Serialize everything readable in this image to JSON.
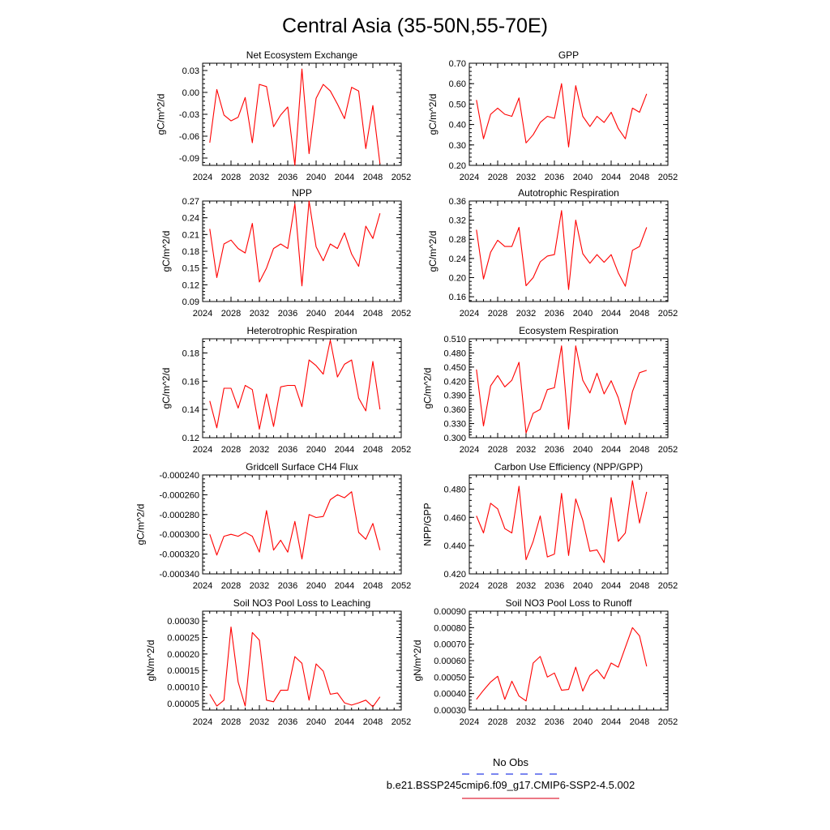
{
  "figure": {
    "title": "Central Asia (35-50N,55-70E)",
    "legend": {
      "entries": [
        {
          "label": "No Obs",
          "color": "#2b3ee6",
          "dash": true
        },
        {
          "label": "b.e21.BSSP245cmip6.f09_g17.CMIP6-SSP2-4.5.002",
          "color": "#e0283c",
          "dash": false
        }
      ]
    },
    "line_color": "#ff0000"
  },
  "chart_data": [
    {
      "type": "line",
      "title": "Net Ecosystem Exchange",
      "ylabel": "gC/m^2/d",
      "xlim": [
        2024,
        2052
      ],
      "xticks": [
        2024,
        2028,
        2032,
        2036,
        2040,
        2044,
        2048,
        2052
      ],
      "ylim": [
        -0.1,
        0.04
      ],
      "yticks": [
        0.03,
        0.0,
        -0.03,
        -0.06,
        -0.09
      ],
      "ytick_labels": [
        "0.03",
        "0.00",
        "-0.03",
        "-0.06",
        "-0.09"
      ],
      "x": [
        2025,
        2026,
        2027,
        2028,
        2029,
        2030,
        2031,
        2032,
        2033,
        2034,
        2035,
        2036,
        2037,
        2038,
        2039,
        2040,
        2041,
        2042,
        2043,
        2044,
        2045,
        2046,
        2047,
        2048,
        2049
      ],
      "y": [
        -0.069,
        0.004,
        -0.031,
        -0.039,
        -0.034,
        -0.007,
        -0.069,
        0.011,
        0.008,
        -0.047,
        -0.031,
        -0.02,
        -0.1,
        0.032,
        -0.084,
        -0.008,
        0.011,
        0.002,
        -0.016,
        -0.036,
        0.007,
        0.002,
        -0.077,
        -0.018,
        -0.098
      ]
    },
    {
      "type": "line",
      "title": "GPP",
      "ylabel": "gC/m^2/d",
      "xlim": [
        2024,
        2052
      ],
      "xticks": [
        2024,
        2028,
        2032,
        2036,
        2040,
        2044,
        2048,
        2052
      ],
      "ylim": [
        0.2,
        0.7
      ],
      "yticks": [
        0.7,
        0.6,
        0.5,
        0.4,
        0.3,
        0.2
      ],
      "ytick_labels": [
        "0.70",
        "0.60",
        "0.50",
        "0.40",
        "0.30",
        "0.20"
      ],
      "x": [
        2025,
        2026,
        2027,
        2028,
        2029,
        2030,
        2031,
        2032,
        2033,
        2034,
        2035,
        2036,
        2037,
        2038,
        2039,
        2040,
        2041,
        2042,
        2043,
        2044,
        2045,
        2046,
        2047,
        2048,
        2049
      ],
      "y": [
        0.52,
        0.33,
        0.45,
        0.48,
        0.45,
        0.44,
        0.53,
        0.31,
        0.35,
        0.41,
        0.44,
        0.43,
        0.6,
        0.29,
        0.59,
        0.44,
        0.39,
        0.44,
        0.41,
        0.46,
        0.38,
        0.33,
        0.48,
        0.46,
        0.55
      ]
    },
    {
      "type": "line",
      "title": "NPP",
      "ylabel": "gC/m^2/d",
      "xlim": [
        2024,
        2052
      ],
      "xticks": [
        2024,
        2028,
        2032,
        2036,
        2040,
        2044,
        2048,
        2052
      ],
      "ylim": [
        0.09,
        0.27
      ],
      "yticks": [
        0.27,
        0.24,
        0.21,
        0.18,
        0.15,
        0.12,
        0.09
      ],
      "ytick_labels": [
        "0.27",
        "0.24",
        "0.21",
        "0.18",
        "0.15",
        "0.12",
        "0.09"
      ],
      "x": [
        2025,
        2026,
        2027,
        2028,
        2029,
        2030,
        2031,
        2032,
        2033,
        2034,
        2035,
        2036,
        2037,
        2038,
        2039,
        2040,
        2041,
        2042,
        2043,
        2044,
        2045,
        2046,
        2047,
        2048,
        2049
      ],
      "y": [
        0.22,
        0.133,
        0.193,
        0.2,
        0.185,
        0.177,
        0.23,
        0.125,
        0.15,
        0.185,
        0.193,
        0.185,
        0.265,
        0.118,
        0.27,
        0.188,
        0.163,
        0.193,
        0.185,
        0.213,
        0.175,
        0.153,
        0.225,
        0.203,
        0.248
      ]
    },
    {
      "type": "line",
      "title": "Autotrophic Respiration",
      "ylabel": "gC/m^2/d",
      "xlim": [
        2024,
        2052
      ],
      "xticks": [
        2024,
        2028,
        2032,
        2036,
        2040,
        2044,
        2048,
        2052
      ],
      "ylim": [
        0.15,
        0.36
      ],
      "yticks": [
        0.36,
        0.32,
        0.28,
        0.24,
        0.2,
        0.16
      ],
      "ytick_labels": [
        "0.36",
        "0.32",
        "0.28",
        "0.24",
        "0.20",
        "0.16"
      ],
      "x": [
        2025,
        2026,
        2027,
        2028,
        2029,
        2030,
        2031,
        2032,
        2033,
        2034,
        2035,
        2036,
        2037,
        2038,
        2039,
        2040,
        2041,
        2042,
        2043,
        2044,
        2045,
        2046,
        2047,
        2048,
        2049
      ],
      "y": [
        0.3,
        0.197,
        0.253,
        0.278,
        0.265,
        0.265,
        0.305,
        0.183,
        0.2,
        0.233,
        0.245,
        0.248,
        0.34,
        0.175,
        0.32,
        0.25,
        0.23,
        0.248,
        0.232,
        0.248,
        0.21,
        0.182,
        0.257,
        0.265,
        0.305
      ]
    },
    {
      "type": "line",
      "title": "Heterotrophic Respiration",
      "ylabel": "gC/m^2/d",
      "xlim": [
        2024,
        2052
      ],
      "xticks": [
        2024,
        2028,
        2032,
        2036,
        2040,
        2044,
        2048,
        2052
      ],
      "ylim": [
        0.12,
        0.19
      ],
      "yticks": [
        0.18,
        0.16,
        0.14,
        0.12
      ],
      "ytick_labels": [
        "0.18",
        "0.16",
        "0.14",
        "0.12"
      ],
      "x": [
        2025,
        2026,
        2027,
        2028,
        2029,
        2030,
        2031,
        2032,
        2033,
        2034,
        2035,
        2036,
        2037,
        2038,
        2039,
        2040,
        2041,
        2042,
        2043,
        2044,
        2045,
        2046,
        2047,
        2048,
        2049
      ],
      "y": [
        0.146,
        0.127,
        0.155,
        0.155,
        0.141,
        0.157,
        0.154,
        0.126,
        0.151,
        0.128,
        0.156,
        0.157,
        0.157,
        0.142,
        0.175,
        0.171,
        0.165,
        0.189,
        0.163,
        0.172,
        0.175,
        0.148,
        0.139,
        0.174,
        0.14
      ]
    },
    {
      "type": "line",
      "title": "Ecosystem Respiration",
      "ylabel": "gC/m^2/d",
      "xlim": [
        2024,
        2052
      ],
      "xticks": [
        2024,
        2028,
        2032,
        2036,
        2040,
        2044,
        2048,
        2052
      ],
      "ylim": [
        0.3,
        0.51
      ],
      "yticks": [
        0.51,
        0.48,
        0.45,
        0.42,
        0.39,
        0.36,
        0.33,
        0.3
      ],
      "ytick_labels": [
        "0.510",
        "0.480",
        "0.450",
        "0.420",
        "0.390",
        "0.360",
        "0.330",
        "0.300"
      ],
      "x": [
        2025,
        2026,
        2027,
        2028,
        2029,
        2030,
        2031,
        2032,
        2033,
        2034,
        2035,
        2036,
        2037,
        2038,
        2039,
        2040,
        2041,
        2042,
        2043,
        2044,
        2045,
        2046,
        2047,
        2048,
        2049
      ],
      "y": [
        0.445,
        0.325,
        0.41,
        0.432,
        0.408,
        0.422,
        0.46,
        0.31,
        0.352,
        0.36,
        0.402,
        0.406,
        0.495,
        0.318,
        0.495,
        0.422,
        0.395,
        0.437,
        0.393,
        0.421,
        0.385,
        0.328,
        0.398,
        0.438,
        0.443
      ]
    },
    {
      "type": "line",
      "title": "Gridcell Surface CH4 Flux",
      "ylabel": "gC/m^2/d",
      "xlim": [
        2024,
        2052
      ],
      "xticks": [
        2024,
        2028,
        2032,
        2036,
        2040,
        2044,
        2048,
        2052
      ],
      "ylim": [
        -0.00034,
        -0.00024
      ],
      "yticks": [
        -0.00024,
        -0.00026,
        -0.00028,
        -0.0003,
        -0.00032,
        -0.00034
      ],
      "ytick_labels": [
        "-0.000240",
        "-0.000260",
        "-0.000280",
        "-0.000300",
        "-0.000320",
        "-0.000340"
      ],
      "x": [
        2025,
        2026,
        2027,
        2028,
        2029,
        2030,
        2031,
        2032,
        2033,
        2034,
        2035,
        2036,
        2037,
        2038,
        2039,
        2040,
        2041,
        2042,
        2043,
        2044,
        2045,
        2046,
        2047,
        2048,
        2049
      ],
      "y": [
        -0.0003,
        -0.000321,
        -0.000302,
        -0.0003,
        -0.000302,
        -0.000298,
        -0.000302,
        -0.000318,
        -0.000276,
        -0.000316,
        -0.000306,
        -0.000318,
        -0.000287,
        -0.000325,
        -0.00028,
        -0.000283,
        -0.000282,
        -0.000265,
        -0.00026,
        -0.000263,
        -0.000257,
        -0.000298,
        -0.000305,
        -0.000289,
        -0.000316
      ]
    },
    {
      "type": "line",
      "title": "Carbon Use Efficiency (NPP/GPP)",
      "ylabel": "NPP/GPP",
      "xlim": [
        2024,
        2052
      ],
      "xticks": [
        2024,
        2028,
        2032,
        2036,
        2040,
        2044,
        2048,
        2052
      ],
      "ylim": [
        0.42,
        0.49
      ],
      "yticks": [
        0.48,
        0.46,
        0.44,
        0.42
      ],
      "ytick_labels": [
        "0.480",
        "0.460",
        "0.440",
        "0.420"
      ],
      "x": [
        2025,
        2026,
        2027,
        2028,
        2029,
        2030,
        2031,
        2032,
        2033,
        2034,
        2035,
        2036,
        2037,
        2038,
        2039,
        2040,
        2041,
        2042,
        2043,
        2044,
        2045,
        2046,
        2047,
        2048,
        2049
      ],
      "y": [
        0.461,
        0.449,
        0.47,
        0.466,
        0.452,
        0.449,
        0.482,
        0.43,
        0.443,
        0.461,
        0.432,
        0.434,
        0.477,
        0.433,
        0.473,
        0.458,
        0.436,
        0.437,
        0.428,
        0.474,
        0.443,
        0.449,
        0.486,
        0.456,
        0.478
      ]
    },
    {
      "type": "line",
      "title": "Soil NO3 Pool Loss to Leaching",
      "ylabel": "gN/m^2/d",
      "xlim": [
        2024,
        2052
      ],
      "xticks": [
        2024,
        2028,
        2032,
        2036,
        2040,
        2044,
        2048,
        2052
      ],
      "ylim": [
        3e-05,
        0.00033
      ],
      "yticks": [
        0.0003,
        0.00025,
        0.0002,
        0.00015,
        0.0001,
        5e-05
      ],
      "ytick_labels": [
        "0.00030",
        "0.00025",
        "0.00020",
        "0.00015",
        "0.00010",
        "0.00005"
      ],
      "x": [
        2025,
        2026,
        2027,
        2028,
        2029,
        2030,
        2031,
        2032,
        2033,
        2034,
        2035,
        2036,
        2037,
        2038,
        2039,
        2040,
        2041,
        2042,
        2043,
        2044,
        2045,
        2046,
        2047,
        2048,
        2049
      ],
      "y": [
        7.8e-05,
        4.2e-05,
        6e-05,
        0.000282,
        0.000115,
        4.2e-05,
        0.000265,
        0.000242,
        6e-05,
        5.5e-05,
        9e-05,
        9e-05,
        0.000192,
        0.000172,
        6e-05,
        0.00017,
        0.000148,
        7.8e-05,
        8.2e-05,
        5.2e-05,
        4.5e-05,
        5.2e-05,
        6e-05,
        4e-05,
        7e-05
      ]
    },
    {
      "type": "line",
      "title": "Soil NO3 Pool Loss to Runoff",
      "ylabel": "gN/m^2/d",
      "xlim": [
        2024,
        2052
      ],
      "xticks": [
        2024,
        2028,
        2032,
        2036,
        2040,
        2044,
        2048,
        2052
      ],
      "ylim": [
        0.0003,
        0.0009
      ],
      "yticks": [
        0.0009,
        0.0008,
        0.0007,
        0.0006,
        0.0005,
        0.0004,
        0.0003
      ],
      "ytick_labels": [
        "0.00090",
        "0.00080",
        "0.00070",
        "0.00060",
        "0.00050",
        "0.00040",
        "0.00030"
      ],
      "x": [
        2025,
        2026,
        2027,
        2028,
        2029,
        2030,
        2031,
        2032,
        2033,
        2034,
        2035,
        2036,
        2037,
        2038,
        2039,
        2040,
        2041,
        2042,
        2043,
        2044,
        2045,
        2046,
        2047,
        2048,
        2049
      ],
      "y": [
        0.000365,
        0.00042,
        0.00047,
        0.000505,
        0.000365,
        0.000475,
        0.000385,
        0.000355,
        0.000585,
        0.000625,
        0.0005,
        0.000525,
        0.00042,
        0.000425,
        0.00056,
        0.000415,
        0.00051,
        0.000545,
        0.00049,
        0.000585,
        0.00056,
        0.00068,
        0.0008,
        0.00075,
        0.000565
      ]
    }
  ]
}
